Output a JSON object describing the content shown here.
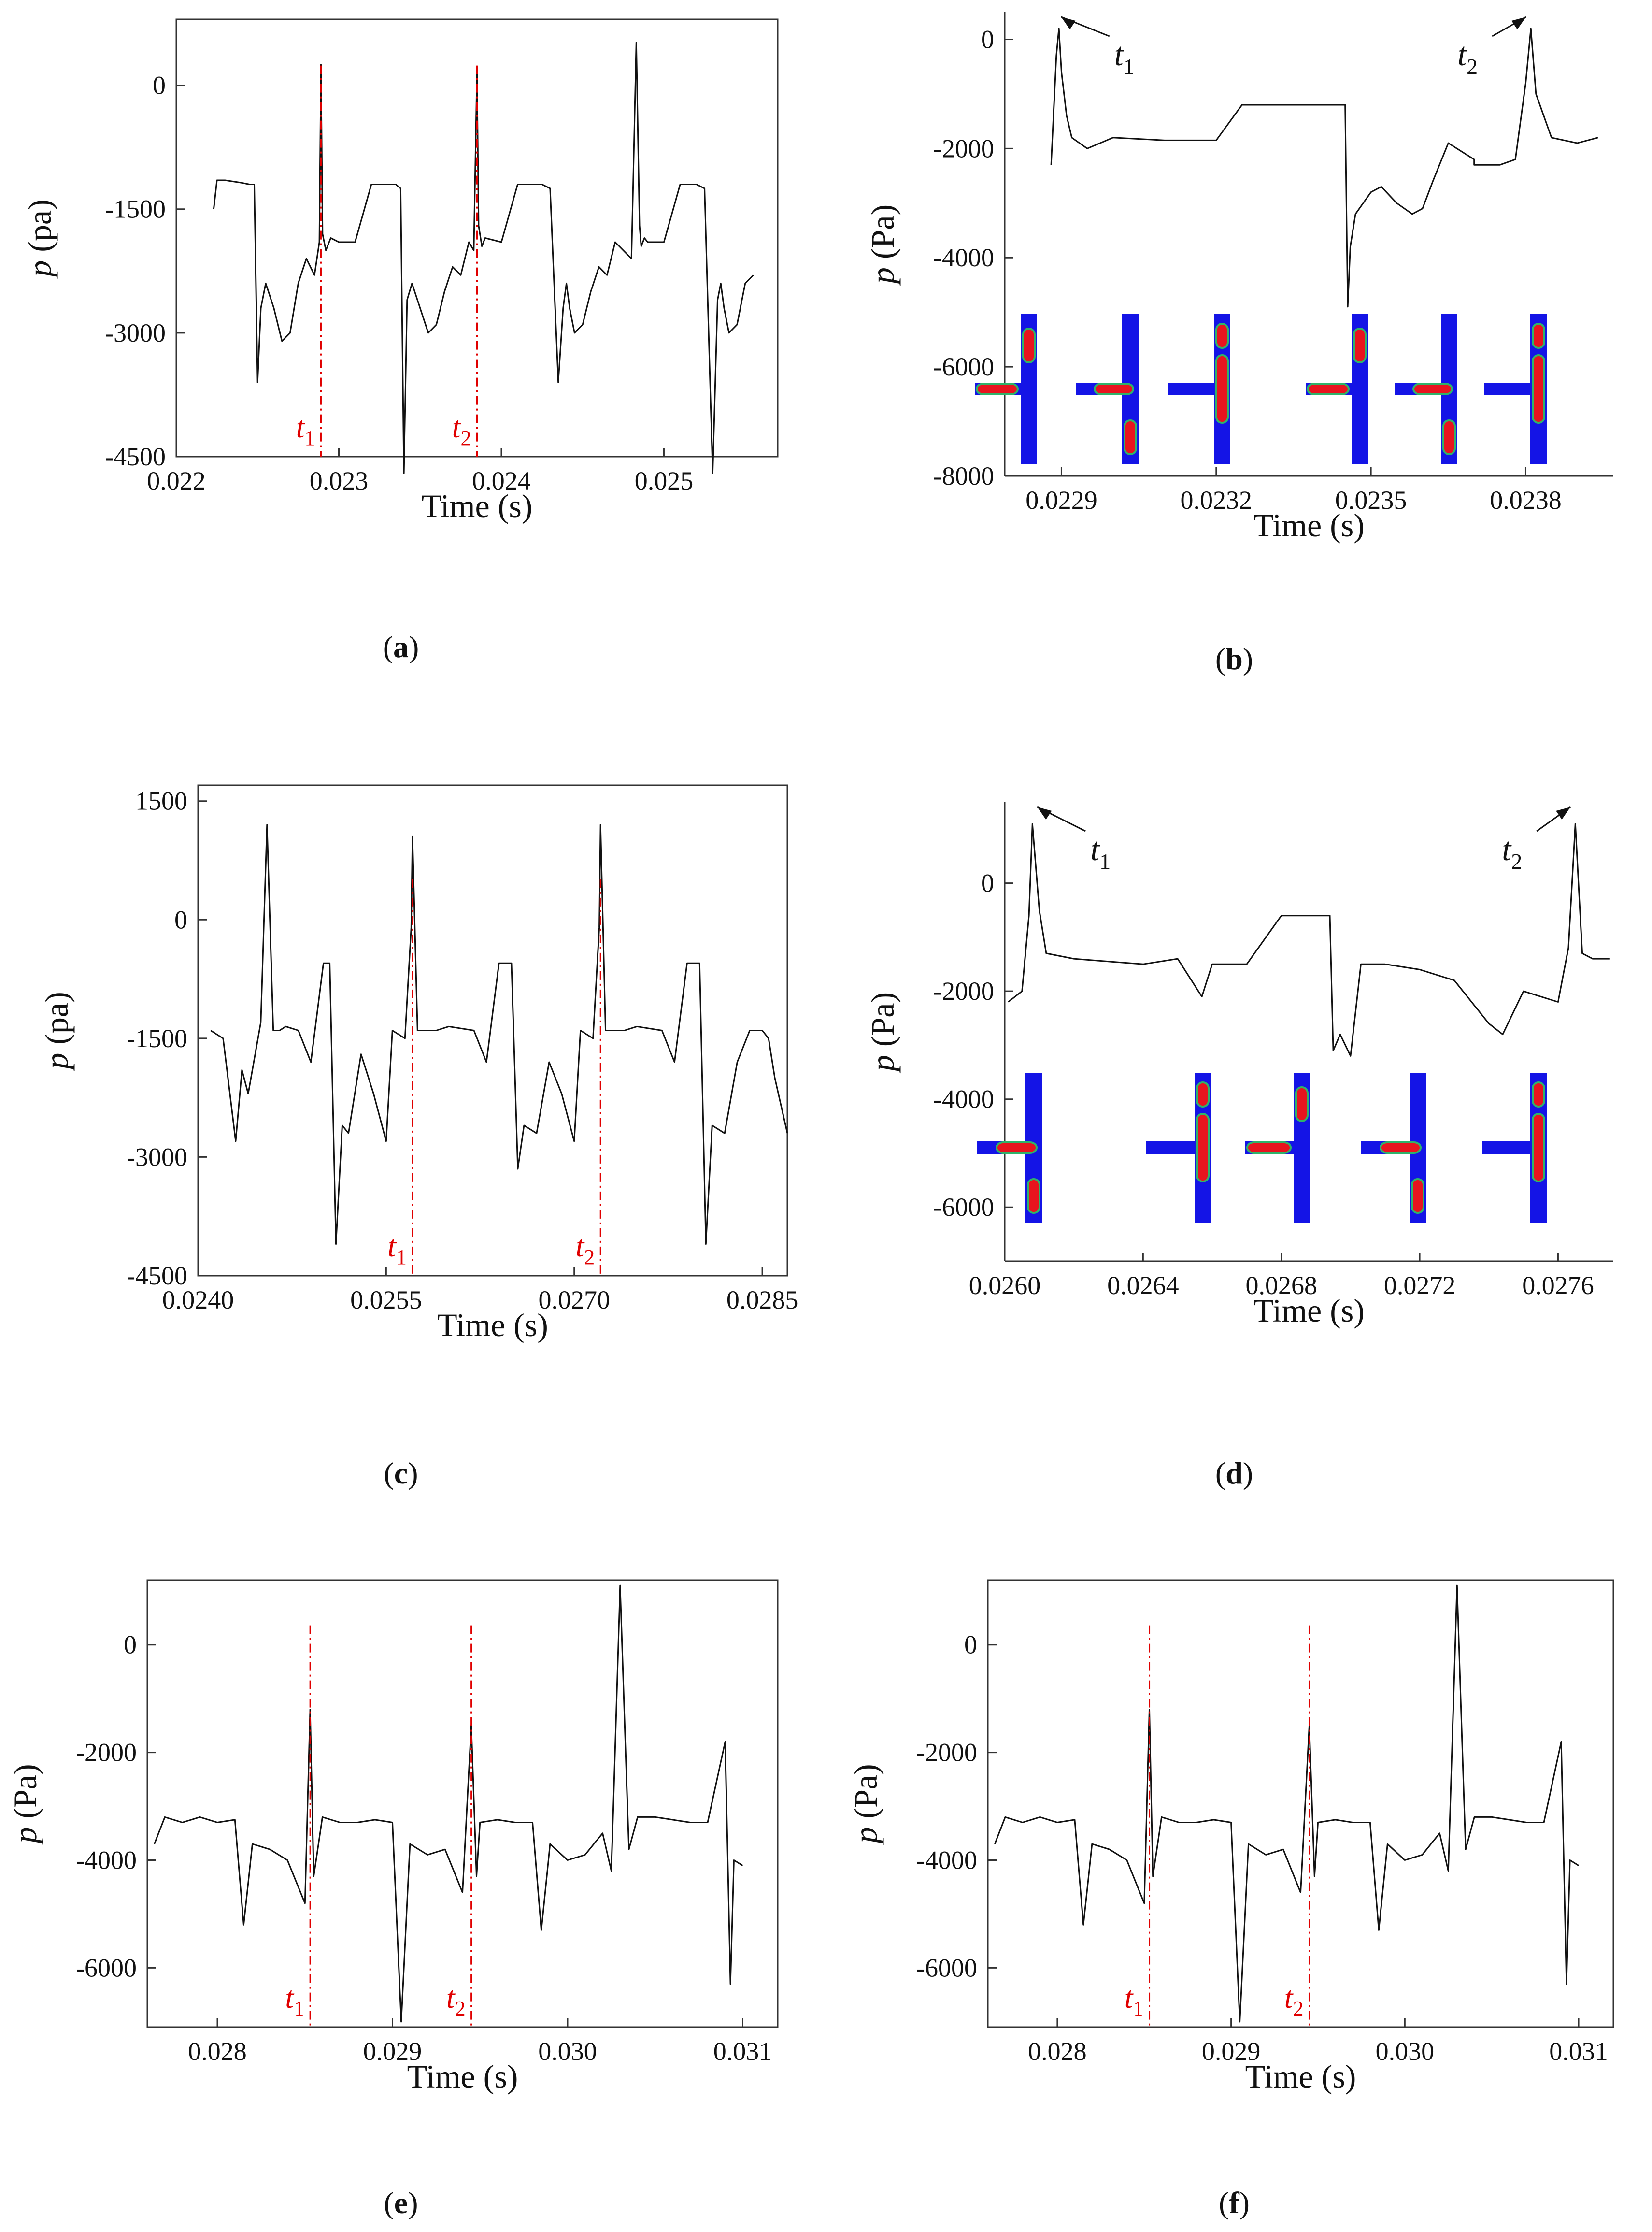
{
  "figure": {
    "panels": [
      {
        "id": "a",
        "caption_letter": "a"
      },
      {
        "id": "b",
        "caption_letter": "b"
      },
      {
        "id": "c",
        "caption_letter": "c"
      },
      {
        "id": "d",
        "caption_letter": "d"
      },
      {
        "id": "e",
        "caption_letter": "e"
      },
      {
        "id": "f",
        "caption_letter": "f"
      }
    ]
  },
  "chart_data": [
    {
      "panel": "a",
      "type": "line",
      "xlabel": "Time (s)",
      "ylabel_var": "p",
      "ylabel_unit": "(pa)",
      "xlim": [
        0.022,
        0.0257
      ],
      "ylim": [
        -4500,
        800
      ],
      "xticks": [
        0.022,
        0.023,
        0.024,
        0.025
      ],
      "xtick_labels": [
        "0.022",
        "0.023",
        "0.024",
        "0.025"
      ],
      "yticks": [
        0,
        -1500,
        -3000,
        -4500
      ],
      "ytick_labels": [
        "0",
        "-1500",
        "-3000",
        "-4500"
      ],
      "markers": [
        {
          "label": "t",
          "sub": "1",
          "x": 0.02289
        },
        {
          "label": "t",
          "sub": "2",
          "x": 0.02385
        }
      ],
      "series": [
        {
          "x": [
            0.02223,
            0.02225,
            0.0223,
            0.0224,
            0.02245,
            0.02248,
            0.0225,
            0.02252,
            0.02255,
            0.0226,
            0.02265,
            0.0227,
            0.02275,
            0.0228,
            0.02285,
            0.02288,
            0.02289,
            0.0229,
            0.02292,
            0.02295,
            0.023,
            0.0231,
            0.0232,
            0.0233,
            0.02335,
            0.02338,
            0.0234,
            0.02342,
            0.02345,
            0.0235,
            0.02355,
            0.0236,
            0.02365,
            0.0237,
            0.02375,
            0.0238,
            0.02383,
            0.02385,
            0.02386,
            0.02388,
            0.0239,
            0.024,
            0.0241,
            0.0242,
            0.02425,
            0.0243,
            0.02435,
            0.02438,
            0.0244,
            0.02442,
            0.02445,
            0.0245,
            0.02455,
            0.0246,
            0.02465,
            0.0247,
            0.02475,
            0.0248,
            0.02483,
            0.02485,
            0.02486,
            0.02488,
            0.0249,
            0.025,
            0.0251,
            0.0252,
            0.02525,
            0.0253,
            0.02533,
            0.02535,
            0.02537,
            0.0254,
            0.02545,
            0.0255,
            0.02555
          ],
          "y": [
            -1500,
            -1150,
            -1150,
            -1180,
            -1200,
            -1200,
            -3600,
            -2700,
            -2400,
            -2700,
            -3100,
            -3000,
            -2400,
            -2100,
            -2300,
            -1900,
            250,
            -1800,
            -2000,
            -1850,
            -1900,
            -1900,
            -1200,
            -1200,
            -1200,
            -1250,
            -4700,
            -2600,
            -2400,
            -2700,
            -3000,
            -2900,
            -2500,
            -2200,
            -2300,
            -1900,
            -2000,
            200,
            -1700,
            -1950,
            -1850,
            -1900,
            -1200,
            -1200,
            -1200,
            -1250,
            -3600,
            -2700,
            -2400,
            -2700,
            -3000,
            -2900,
            -2500,
            -2200,
            -2300,
            -1900,
            -2000,
            -2100,
            520,
            -1700,
            -1950,
            -1850,
            -1900,
            -1900,
            -1200,
            -1200,
            -1250,
            -4700,
            -2600,
            -2400,
            -2700,
            -3000,
            -2900,
            -2400,
            -2300
          ]
        }
      ]
    },
    {
      "panel": "b",
      "type": "line",
      "xlabel": "Time (s)",
      "ylabel_var": "p",
      "ylabel_unit": "(Pa)",
      "xlim": [
        0.02279,
        0.02397
      ],
      "ylim": [
        -8000,
        500
      ],
      "xticks": [
        0.0229,
        0.0232,
        0.0235,
        0.0238
      ],
      "xtick_labels": [
        "0.0229",
        "0.0232",
        "0.0235",
        "0.0238"
      ],
      "yticks": [
        0,
        -2000,
        -4000,
        -6000,
        -8000
      ],
      "ytick_labels": [
        "0",
        "-2000",
        "-4000",
        "-6000",
        "-8000"
      ],
      "markers": [
        {
          "label": "t",
          "sub": "1",
          "x": 0.02289
        },
        {
          "label": "t",
          "sub": "2",
          "x": 0.02381
        }
      ],
      "series": [
        {
          "x": [
            0.02288,
            0.02289,
            0.022895,
            0.0229,
            0.02291,
            0.02292,
            0.02295,
            0.023,
            0.0231,
            0.0232,
            0.02325,
            0.0233,
            0.0234,
            0.02345,
            0.023455,
            0.02346,
            0.02347,
            0.0235,
            0.02352,
            0.02355,
            0.02358,
            0.0236,
            0.02362,
            0.02365,
            0.0237,
            0.0237,
            0.02375,
            0.02378,
            0.0238,
            0.02381,
            0.02382,
            0.02385,
            0.0239,
            0.02394
          ],
          "y": [
            -2300,
            -300,
            200,
            -600,
            -1400,
            -1800,
            -2000,
            -1800,
            -1850,
            -1850,
            -1200,
            -1200,
            -1200,
            -1200,
            -4900,
            -3800,
            -3200,
            -2800,
            -2700,
            -3000,
            -3200,
            -3100,
            -2600,
            -1900,
            -2200,
            -2300,
            -2300,
            -2200,
            -800,
            200,
            -1000,
            -1800,
            -1900,
            -1800
          ]
        }
      ]
    },
    {
      "panel": "c",
      "type": "line",
      "xlabel": "Time (s)",
      "ylabel_var": "p",
      "ylabel_unit": "(pa)",
      "xlim": [
        0.024,
        0.0287
      ],
      "ylim": [
        -4500,
        1700
      ],
      "xticks": [
        0.024,
        0.0255,
        0.027,
        0.0285
      ],
      "xtick_labels": [
        "0.0240",
        "0.0255",
        "0.0270",
        "0.0285"
      ],
      "yticks": [
        1500,
        0,
        -1500,
        -3000,
        -4500
      ],
      "ytick_labels": [
        "1500",
        "0",
        "-1500",
        "-3000",
        "-4500"
      ],
      "markers": [
        {
          "label": "t",
          "sub": "1",
          "x": 0.02571
        },
        {
          "label": "t",
          "sub": "2",
          "x": 0.02721
        }
      ],
      "series": [
        {
          "x": [
            0.0241,
            0.0242,
            0.0243,
            0.02435,
            0.0244,
            0.0245,
            0.02455,
            0.0246,
            0.02465,
            0.0247,
            0.0248,
            0.0249,
            0.025,
            0.02505,
            0.0251,
            0.02515,
            0.0252,
            0.0253,
            0.0254,
            0.0255,
            0.02555,
            0.02565,
            0.0257,
            0.02571,
            0.02575,
            0.0258,
            0.0259,
            0.026,
            0.0262,
            0.0263,
            0.0264,
            0.0265,
            0.02655,
            0.0266,
            0.0267,
            0.0268,
            0.0269,
            0.027,
            0.02705,
            0.02715,
            0.0272,
            0.02721,
            0.02725,
            0.0273,
            0.0274,
            0.0275,
            0.0277,
            0.0278,
            0.0279,
            0.028,
            0.02805,
            0.0281,
            0.0282,
            0.0283,
            0.0284,
            0.0285,
            0.02855,
            0.0286,
            0.0287
          ],
          "y": [
            -1400,
            -1500,
            -2800,
            -1900,
            -2200,
            -1300,
            1200,
            -1400,
            -1400,
            -1350,
            -1400,
            -1800,
            -550,
            -550,
            -4100,
            -2600,
            -2700,
            -1700,
            -2200,
            -2800,
            -1400,
            -1500,
            -100,
            1050,
            -1400,
            -1400,
            -1400,
            -1350,
            -1400,
            -1800,
            -550,
            -550,
            -3150,
            -2600,
            -2700,
            -1800,
            -2200,
            -2800,
            -1400,
            -1500,
            -100,
            1200,
            -1400,
            -1400,
            -1400,
            -1350,
            -1400,
            -1800,
            -550,
            -550,
            -4100,
            -2600,
            -2700,
            -1800,
            -1400,
            -1400,
            -1500,
            -2000,
            -2700
          ]
        }
      ]
    },
    {
      "panel": "d",
      "type": "line",
      "xlabel": "Time (s)",
      "ylabel_var": "p",
      "ylabel_unit": "(Pa)",
      "xlim": [
        0.026,
        0.02776
      ],
      "ylim": [
        -7000,
        1500
      ],
      "xticks": [
        0.026,
        0.0264,
        0.0268,
        0.0272,
        0.0276
      ],
      "xtick_labels": [
        "0.0260",
        "0.0264",
        "0.0268",
        "0.0272",
        "0.0276"
      ],
      "yticks": [
        0,
        -2000,
        -4000,
        -6000
      ],
      "ytick_labels": [
        "0",
        "-2000",
        "-4000",
        "-6000"
      ],
      "markers": [
        {
          "label": "t",
          "sub": "1",
          "x": 0.02608
        },
        {
          "label": "t",
          "sub": "2",
          "x": 0.02765
        }
      ],
      "series": [
        {
          "x": [
            0.02601,
            0.02605,
            0.02607,
            0.02608,
            0.0261,
            0.02612,
            0.0262,
            0.0263,
            0.0264,
            0.0265,
            0.02657,
            0.0266,
            0.02662,
            0.0267,
            0.0268,
            0.0269,
            0.02694,
            0.02695,
            0.02697,
            0.027,
            0.02703,
            0.0271,
            0.0272,
            0.0273,
            0.0274,
            0.02744,
            0.0275,
            0.0276,
            0.02763,
            0.02765,
            0.02767,
            0.0277,
            0.02775
          ],
          "y": [
            -2200,
            -2000,
            -600,
            1100,
            -500,
            -1300,
            -1400,
            -1450,
            -1500,
            -1400,
            -2100,
            -1500,
            -1500,
            -1500,
            -600,
            -600,
            -600,
            -3100,
            -2800,
            -3200,
            -1500,
            -1500,
            -1600,
            -1800,
            -2600,
            -2800,
            -2000,
            -2200,
            -1200,
            1100,
            -1300,
            -1400,
            -1400
          ]
        }
      ]
    },
    {
      "panel": "e",
      "type": "line",
      "xlabel": "Time (s)",
      "ylabel_var": "p",
      "ylabel_unit": "(Pa)",
      "xlim": [
        0.0276,
        0.0312
      ],
      "ylim": [
        -7100,
        1200
      ],
      "xticks": [
        0.028,
        0.029,
        0.03,
        0.031
      ],
      "xtick_labels": [
        "0.028",
        "0.029",
        "0.030",
        "0.031"
      ],
      "yticks": [
        0,
        -2000,
        -4000,
        -6000
      ],
      "ytick_labels": [
        "0",
        "-2000",
        "-4000",
        "-6000"
      ],
      "markers": [
        {
          "label": "t",
          "sub": "1",
          "x": 0.02853
        },
        {
          "label": "t",
          "sub": "2",
          "x": 0.02945
        }
      ],
      "series": [
        {
          "x": [
            0.02764,
            0.0277,
            0.0278,
            0.0279,
            0.028,
            0.0281,
            0.02815,
            0.0282,
            0.0283,
            0.0284,
            0.0285,
            0.02853,
            0.02855,
            0.0286,
            0.0287,
            0.0288,
            0.0289,
            0.029,
            0.02905,
            0.0291,
            0.0292,
            0.0293,
            0.0294,
            0.02945,
            0.02948,
            0.0295,
            0.0296,
            0.0297,
            0.0298,
            0.02985,
            0.0299,
            0.03,
            0.0301,
            0.0302,
            0.03025,
            0.0303,
            0.03035,
            0.0304,
            0.0305,
            0.0306,
            0.0307,
            0.0308,
            0.0309,
            0.03093,
            0.03095,
            0.031
          ],
          "y": [
            -3700,
            -3200,
            -3300,
            -3200,
            -3300,
            -3250,
            -5200,
            -3700,
            -3800,
            -4000,
            -4800,
            -1200,
            -4300,
            -3200,
            -3300,
            -3300,
            -3250,
            -3300,
            -7000,
            -3700,
            -3900,
            -3800,
            -4600,
            -1500,
            -4300,
            -3300,
            -3250,
            -3300,
            -3300,
            -5300,
            -3700,
            -4000,
            -3900,
            -3500,
            -4200,
            1100,
            -3800,
            -3200,
            -3200,
            -3250,
            -3300,
            -3300,
            -1800,
            -6300,
            -4000,
            -4100
          ]
        }
      ]
    },
    {
      "panel": "f",
      "type": "line",
      "xlabel": "Time (s)",
      "ylabel_var": "p",
      "ylabel_unit": "(Pa)",
      "xlim": [
        0.0276,
        0.0312
      ],
      "ylim": [
        -7100,
        1200
      ],
      "xticks": [
        0.028,
        0.029,
        0.03,
        0.031
      ],
      "xtick_labels": [
        "0.028",
        "0.029",
        "0.030",
        "0.031"
      ],
      "yticks": [
        0,
        -2000,
        -4000,
        -6000
      ],
      "ytick_labels": [
        "0",
        "-2000",
        "-4000",
        "-6000"
      ],
      "markers": [
        {
          "label": "t",
          "sub": "1",
          "x": 0.02853
        },
        {
          "label": "t",
          "sub": "2",
          "x": 0.02945
        }
      ],
      "series": [
        {
          "x": [
            0.02764,
            0.0277,
            0.0278,
            0.0279,
            0.028,
            0.0281,
            0.02815,
            0.0282,
            0.0283,
            0.0284,
            0.0285,
            0.02853,
            0.02855,
            0.0286,
            0.0287,
            0.0288,
            0.0289,
            0.029,
            0.02905,
            0.0291,
            0.0292,
            0.0293,
            0.0294,
            0.02945,
            0.02948,
            0.0295,
            0.0296,
            0.0297,
            0.0298,
            0.02985,
            0.0299,
            0.03,
            0.0301,
            0.0302,
            0.03025,
            0.0303,
            0.03035,
            0.0304,
            0.0305,
            0.0306,
            0.0307,
            0.0308,
            0.0309,
            0.03093,
            0.03095,
            0.031
          ],
          "y": [
            -3700,
            -3200,
            -3300,
            -3200,
            -3300,
            -3250,
            -5200,
            -3700,
            -3800,
            -4000,
            -4800,
            -1200,
            -4300,
            -3200,
            -3300,
            -3300,
            -3250,
            -3300,
            -7000,
            -3700,
            -3900,
            -3800,
            -4600,
            -1500,
            -4300,
            -3300,
            -3250,
            -3300,
            -3300,
            -5300,
            -3700,
            -4000,
            -3900,
            -3500,
            -4200,
            1100,
            -3800,
            -3200,
            -3200,
            -3250,
            -3300,
            -3300,
            -1800,
            -6300,
            -4000,
            -4100
          ]
        }
      ]
    }
  ],
  "colors": {
    "line": "#111111",
    "marker": "#e00000",
    "droplet": "#e8141e",
    "channel": "#1414e6",
    "interface": "#2fb36a"
  }
}
